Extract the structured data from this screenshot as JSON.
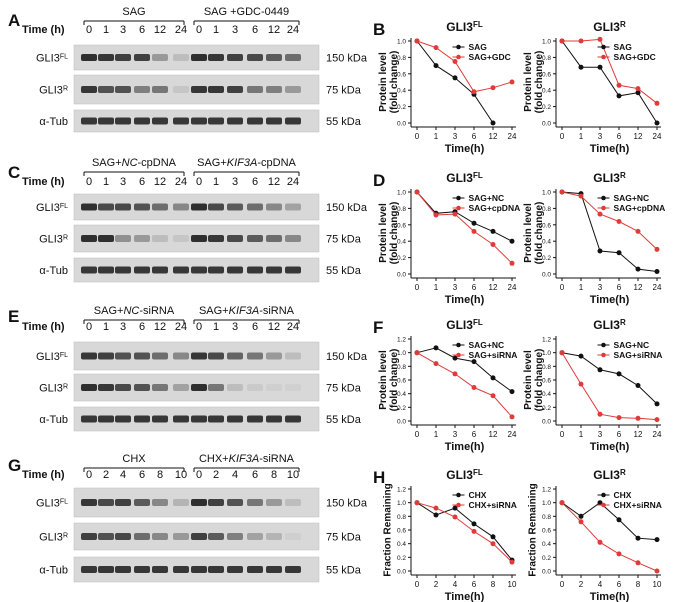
{
  "figure": {
    "colors": {
      "black": "#111111",
      "red": "#e03b3b",
      "blot_bg": "#d8d8d8",
      "band": "#262626"
    },
    "blots": [
      {
        "panel": "A",
        "time_label": "Time (h)",
        "groups": [
          {
            "label_segments": [
              "SAG"
            ]
          },
          {
            "label_segments": [
              "SAG +GDC-0449"
            ]
          }
        ],
        "lanes": [
          "0",
          "1",
          "3",
          "6",
          "12",
          "24",
          "0",
          "1",
          "3",
          "6",
          "12",
          "24"
        ],
        "rows": [
          {
            "protein": "GLI3",
            "sup": "FL",
            "size": "150 kDa",
            "intensity": [
              0.95,
              0.9,
              0.85,
              0.85,
              0.35,
              0.15,
              0.95,
              0.9,
              0.85,
              0.8,
              0.7,
              0.6
            ]
          },
          {
            "protein": "GLI3",
            "sup": "R",
            "size": "75 kDa",
            "intensity": [
              0.9,
              0.75,
              0.75,
              0.5,
              0.55,
              0.1,
              0.9,
              0.9,
              0.85,
              0.55,
              0.5,
              0.35
            ]
          },
          {
            "protein": "α-Tub",
            "sup": "",
            "size": "55 kDa",
            "intensity": [
              0.9,
              0.9,
              0.9,
              0.9,
              0.9,
              0.9,
              0.9,
              0.9,
              0.9,
              0.9,
              0.9,
              0.9
            ]
          }
        ]
      },
      {
        "panel": "C",
        "time_label": "Time (h)",
        "groups": [
          {
            "label_segments": [
              "SAG+",
              "NC",
              "-cpDNA"
            ]
          },
          {
            "label_segments": [
              "SAG+",
              "KIF3A",
              "-cpDNA"
            ]
          }
        ],
        "lanes": [
          "0",
          "1",
          "3",
          "6",
          "12",
          "24",
          "0",
          "1",
          "3",
          "6",
          "12",
          "24"
        ],
        "rows": [
          {
            "protein": "GLI3",
            "sup": "FL",
            "size": "150 kDa",
            "intensity": [
              0.95,
              0.8,
              0.8,
              0.75,
              0.6,
              0.45,
              0.95,
              0.8,
              0.7,
              0.6,
              0.45,
              0.3
            ]
          },
          {
            "protein": "GLI3",
            "sup": "R",
            "size": "75 kDa",
            "intensity": [
              0.95,
              0.95,
              0.4,
              0.35,
              0.15,
              0.1,
              0.95,
              0.9,
              0.8,
              0.7,
              0.6,
              0.45
            ]
          },
          {
            "protein": "α-Tub",
            "sup": "",
            "size": "55 kDa",
            "intensity": [
              0.9,
              0.9,
              0.9,
              0.9,
              0.9,
              0.9,
              0.9,
              0.9,
              0.9,
              0.9,
              0.9,
              0.9
            ]
          }
        ]
      },
      {
        "panel": "E",
        "time_label": "Time (h)",
        "groups": [
          {
            "label_segments": [
              "SAG+",
              "NC",
              "-siRNA"
            ]
          },
          {
            "label_segments": [
              "SAG+",
              "KIF3A",
              "-siRNA"
            ]
          }
        ],
        "lanes": [
          "0",
          "1",
          "3",
          "6",
          "12",
          "24",
          "0",
          "1",
          "3",
          "6",
          "12",
          "24"
        ],
        "rows": [
          {
            "protein": "GLI3",
            "sup": "FL",
            "size": "150 kDa",
            "intensity": [
              0.9,
              0.85,
              0.75,
              0.75,
              0.6,
              0.45,
              0.9,
              0.8,
              0.65,
              0.55,
              0.35,
              0.15
            ]
          },
          {
            "protein": "GLI3",
            "sup": "R",
            "size": "75 kDa",
            "intensity": [
              0.95,
              0.9,
              0.8,
              0.75,
              0.55,
              0.3,
              0.95,
              0.55,
              0.15,
              0.08,
              0.05,
              0.03
            ]
          },
          {
            "protein": "α-Tub",
            "sup": "",
            "size": "55 kDa",
            "intensity": [
              0.9,
              0.9,
              0.9,
              0.9,
              0.9,
              0.9,
              0.9,
              0.9,
              0.9,
              0.9,
              0.9,
              0.9
            ]
          }
        ]
      },
      {
        "panel": "G",
        "time_label": "Time (h)",
        "groups": [
          {
            "label_segments": [
              "CHX"
            ]
          },
          {
            "label_segments": [
              "CHX+",
              "KIF3A",
              "-siRNA"
            ]
          }
        ],
        "lanes": [
          "0",
          "2",
          "4",
          "6",
          "8",
          "10",
          "0",
          "2",
          "4",
          "6",
          "8",
          "10"
        ],
        "rows": [
          {
            "protein": "GLI3",
            "sup": "FL",
            "size": "150 kDa",
            "intensity": [
              0.9,
              0.8,
              0.85,
              0.7,
              0.45,
              0.2,
              0.95,
              0.85,
              0.75,
              0.55,
              0.35,
              0.15
            ]
          },
          {
            "protein": "GLI3",
            "sup": "R",
            "size": "75 kDa",
            "intensity": [
              0.85,
              0.75,
              0.8,
              0.6,
              0.45,
              0.35,
              0.85,
              0.7,
              0.5,
              0.3,
              0.2,
              0.05
            ]
          },
          {
            "protein": "α-Tub",
            "sup": "",
            "size": "55 kDa",
            "intensity": [
              0.9,
              0.9,
              0.9,
              0.9,
              0.9,
              0.9,
              0.9,
              0.9,
              0.9,
              0.9,
              0.9,
              0.9
            ]
          }
        ]
      }
    ],
    "chart_data": [
      {
        "panel": "B",
        "type": "line",
        "title": "GLI3",
        "title_sup": "FL",
        "xlabel": "Time(h)",
        "ylabel": [
          "Protein level",
          "(fold change)"
        ],
        "categories": [
          "0",
          "1",
          "3",
          "6",
          "12",
          "24"
        ],
        "ylim": [
          0.0,
          1.0
        ],
        "yticks": [
          "0.0",
          "0.2",
          "0.4",
          "0.6",
          "0.8",
          "1.0"
        ],
        "legend": "top-right",
        "series": [
          {
            "name": "SAG",
            "color": "#111111",
            "values": [
              1.0,
              0.7,
              0.55,
              0.35,
              0.0,
              null
            ]
          },
          {
            "name": "SAG+GDC",
            "color": "#e03b3b",
            "values": [
              1.0,
              0.92,
              0.75,
              0.38,
              0.43,
              0.5
            ]
          }
        ]
      },
      {
        "panel": "B",
        "type": "line",
        "title": "GLI3",
        "title_sup": "R",
        "xlabel": "Time(h)",
        "ylabel": [
          "Protein level",
          "(fold change)"
        ],
        "categories": [
          "0",
          "1",
          "3",
          "6",
          "12",
          "24"
        ],
        "ylim": [
          0.0,
          1.0
        ],
        "yticks": [
          "0.0",
          "0.2",
          "0.4",
          "0.6",
          "0.8",
          "1.0"
        ],
        "legend": "top-right",
        "series": [
          {
            "name": "SAG",
            "color": "#111111",
            "values": [
              1.0,
              0.68,
              0.68,
              0.33,
              0.37,
              0.0
            ]
          },
          {
            "name": "SAG+GDC",
            "color": "#e03b3b",
            "values": [
              1.0,
              1.0,
              1.02,
              0.46,
              0.42,
              0.24
            ]
          }
        ]
      },
      {
        "panel": "D",
        "type": "line",
        "title": "GLI3",
        "title_sup": "FL",
        "xlabel": "Time(h)",
        "ylabel": [
          "Protein level",
          "(fold change)"
        ],
        "categories": [
          "0",
          "1",
          "3",
          "6",
          "12",
          "24"
        ],
        "ylim": [
          0.0,
          1.0
        ],
        "yticks": [
          "0.0",
          "0.2",
          "0.4",
          "0.6",
          "0.8",
          "1.0"
        ],
        "legend": "top-right",
        "series": [
          {
            "name": "SAG+NC",
            "color": "#111111",
            "values": [
              1.0,
              0.74,
              0.76,
              0.62,
              0.52,
              0.4
            ]
          },
          {
            "name": "SAG+cpDNA",
            "color": "#e03b3b",
            "values": [
              1.0,
              0.72,
              0.73,
              0.52,
              0.36,
              0.13
            ]
          }
        ]
      },
      {
        "panel": "D",
        "type": "line",
        "title": "GLI3",
        "title_sup": "R",
        "xlabel": "Time(h)",
        "ylabel": [
          "Protein level",
          "(fold change)"
        ],
        "categories": [
          "0",
          "1",
          "3",
          "6",
          "12",
          "24"
        ],
        "ylim": [
          0.0,
          1.0
        ],
        "yticks": [
          "0.0",
          "0.2",
          "0.4",
          "0.6",
          "0.8",
          "1.0"
        ],
        "legend": "top-right",
        "series": [
          {
            "name": "SAG+NC",
            "color": "#111111",
            "values": [
              1.0,
              0.98,
              0.28,
              0.26,
              0.06,
              0.03
            ]
          },
          {
            "name": "SAG+cpDNA",
            "color": "#e03b3b",
            "values": [
              1.0,
              0.95,
              0.73,
              0.64,
              0.52,
              0.3
            ]
          }
        ]
      },
      {
        "panel": "F",
        "type": "line",
        "title": "GLI3",
        "title_sup": "FL",
        "xlabel": "Time(h)",
        "ylabel": [
          "Protein level",
          "(fold change)"
        ],
        "categories": [
          "0",
          "1",
          "3",
          "6",
          "12",
          "24"
        ],
        "ylim": [
          0.0,
          1.2
        ],
        "yticks": [
          "0.0",
          "0.2",
          "0.4",
          "0.6",
          "0.8",
          "1.0",
          "1.2"
        ],
        "legend": "top-right",
        "series": [
          {
            "name": "SAG+NC",
            "color": "#111111",
            "values": [
              1.0,
              1.07,
              0.92,
              0.87,
              0.63,
              0.43
            ]
          },
          {
            "name": "SAG+siRNA",
            "color": "#e03b3b",
            "values": [
              1.0,
              0.84,
              0.69,
              0.49,
              0.37,
              0.06
            ]
          }
        ]
      },
      {
        "panel": "F",
        "type": "line",
        "title": "GLI3",
        "title_sup": "R",
        "xlabel": "Time(h)",
        "ylabel": [
          "Protein level",
          "(fold change)"
        ],
        "categories": [
          "0",
          "1",
          "3",
          "6",
          "12",
          "24"
        ],
        "ylim": [
          0.0,
          1.2
        ],
        "yticks": [
          "0.0",
          "0.2",
          "0.4",
          "0.6",
          "0.8",
          "1.0",
          "1.2"
        ],
        "legend": "top-right",
        "series": [
          {
            "name": "SAG+NC",
            "color": "#111111",
            "values": [
              1.0,
              0.95,
              0.75,
              0.69,
              0.52,
              0.25
            ]
          },
          {
            "name": "SAG+siRNA",
            "color": "#e03b3b",
            "values": [
              1.0,
              0.54,
              0.1,
              0.05,
              0.04,
              0.02
            ]
          }
        ]
      },
      {
        "panel": "H",
        "type": "line",
        "title": "GLI3",
        "title_sup": "FL",
        "xlabel": "Time(h)",
        "ylabel": [
          "Fraction Remaining"
        ],
        "categories": [
          "0",
          "2",
          "4",
          "6",
          "8",
          "10"
        ],
        "ylim": [
          0.0,
          1.2
        ],
        "yticks": [
          "0.0",
          "0.2",
          "0.4",
          "0.6",
          "0.8",
          "1.0",
          "1.2"
        ],
        "legend": "top-right",
        "series": [
          {
            "name": "CHX",
            "color": "#111111",
            "values": [
              1.0,
              0.82,
              0.92,
              0.69,
              0.5,
              0.16
            ]
          },
          {
            "name": "CHX+siRNA",
            "color": "#e03b3b",
            "values": [
              1.0,
              0.92,
              0.79,
              0.58,
              0.4,
              0.13
            ]
          }
        ]
      },
      {
        "panel": "H",
        "type": "line",
        "title": "GLI3",
        "title_sup": "R",
        "xlabel": "Time(h)",
        "ylabel": [
          "Fraction Remaining"
        ],
        "categories": [
          "0",
          "2",
          "4",
          "6",
          "8",
          "10"
        ],
        "ylim": [
          0.0,
          1.2
        ],
        "yticks": [
          "0.0",
          "0.2",
          "0.4",
          "0.6",
          "0.8",
          "1.0",
          "1.2"
        ],
        "legend": "top-right",
        "series": [
          {
            "name": "CHX",
            "color": "#111111",
            "values": [
              1.0,
              0.8,
              1.0,
              0.75,
              0.48,
              0.46
            ]
          },
          {
            "name": "CHX+siRNA",
            "color": "#e03b3b",
            "values": [
              1.0,
              0.72,
              0.42,
              0.25,
              0.12,
              0.0
            ]
          }
        ]
      }
    ]
  }
}
